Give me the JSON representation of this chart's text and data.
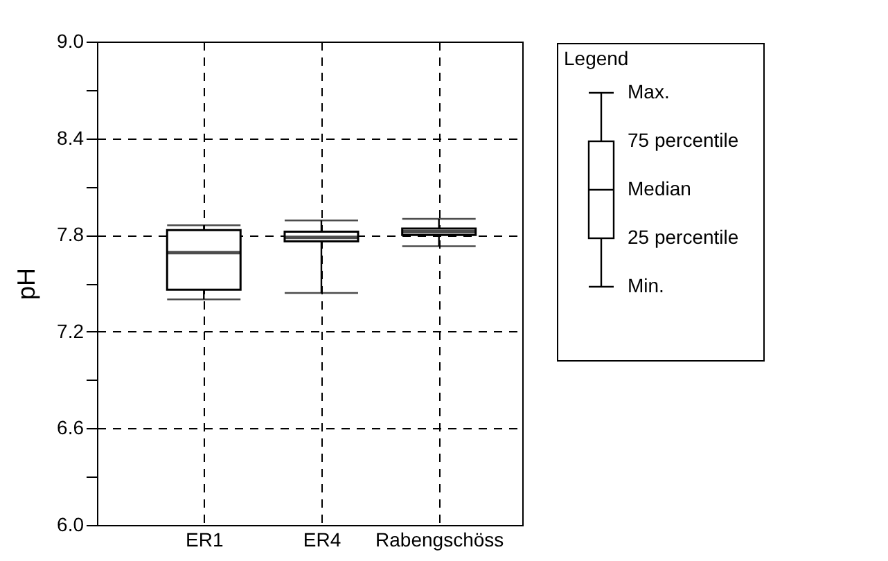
{
  "chart_data": {
    "type": "box",
    "ylabel": "pH",
    "categories": [
      "ER1",
      "ER4",
      "Rabengschöss"
    ],
    "boxes": [
      {
        "low": 7.4,
        "q1": 7.46,
        "median": 7.69,
        "q3": 7.83,
        "high": 7.86
      },
      {
        "low": 7.44,
        "q1": 7.76,
        "median": 7.785,
        "q3": 7.82,
        "high": 7.89
      },
      {
        "low": 7.73,
        "q1": 7.8,
        "median": 7.82,
        "q3": 7.84,
        "high": 7.9
      }
    ],
    "ylim": [
      6.0,
      9.0
    ],
    "yticks": [
      {
        "value": 6.0,
        "label": "6.0"
      },
      {
        "value": 6.3,
        "label": null
      },
      6.6,
      {
        "value": 6.9,
        "label": null
      },
      7.2,
      {
        "value": 7.5,
        "label": null
      },
      7.8,
      {
        "value": 8.1,
        "label": null
      },
      8.4,
      {
        "value": 8.7,
        "label": null
      },
      {
        "value": 9.0,
        "label": "9.0"
      }
    ],
    "grid": true,
    "legend_title": "Legend",
    "annotations": [
      "Max.",
      "75 percentile",
      "Median",
      "25 percentile",
      "Min."
    ]
  }
}
